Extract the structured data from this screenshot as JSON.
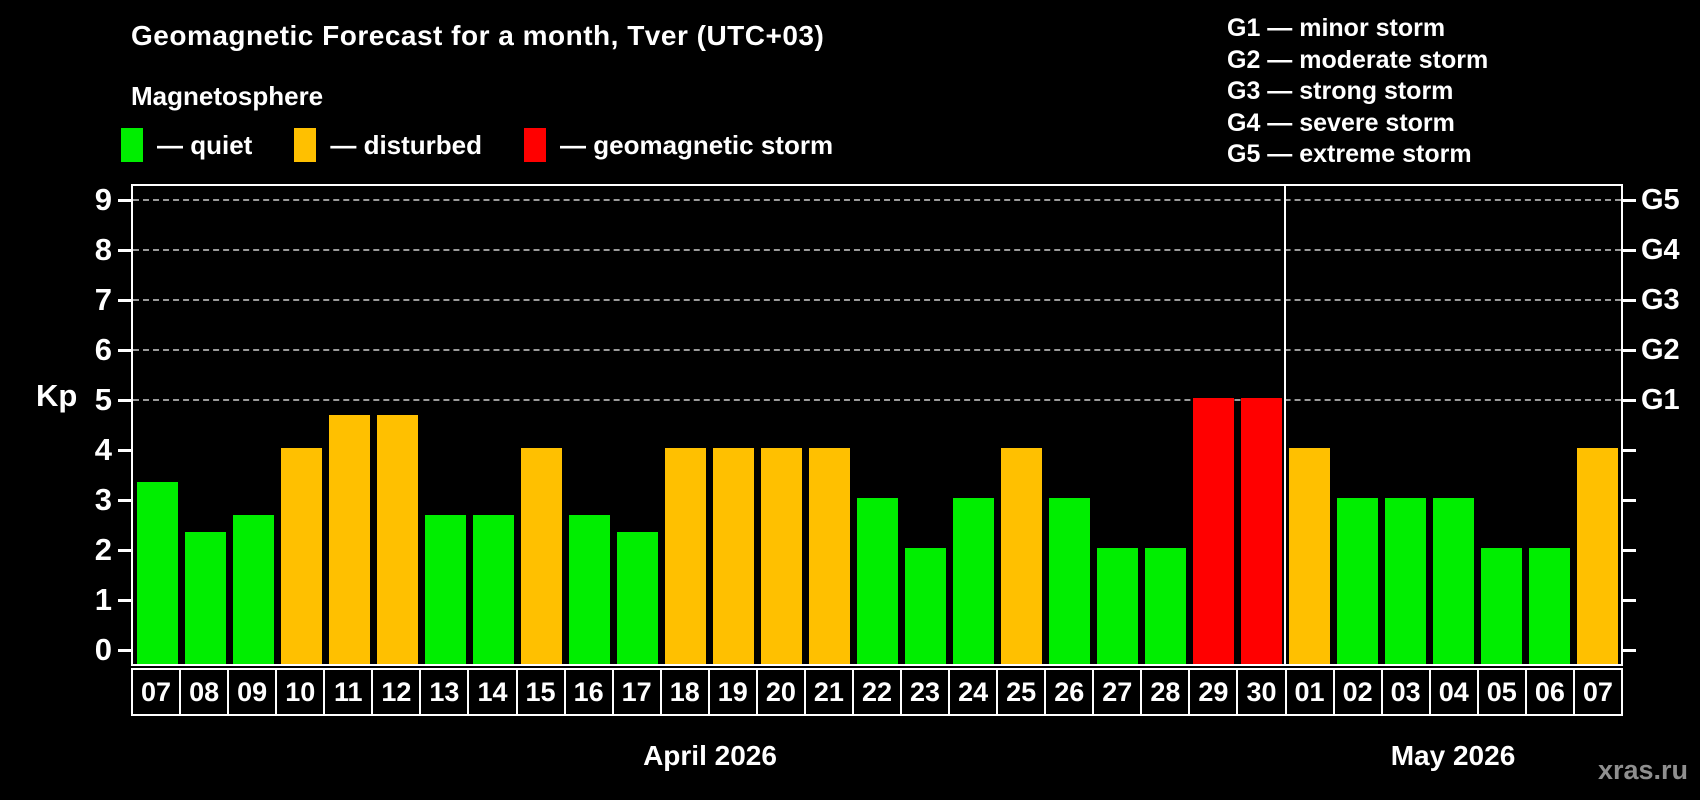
{
  "title": "Geomagnetic Forecast for a month, Tver (UTC+03)",
  "subtitle": "Magnetosphere",
  "watermark": "xras.ru",
  "legend": {
    "items": [
      {
        "key": "quiet",
        "label": "— quiet",
        "color": "#00ee00"
      },
      {
        "key": "disturbed",
        "label": "— disturbed",
        "color": "#ffc000"
      },
      {
        "key": "storm",
        "label": "— geomagnetic storm",
        "color": "#ff0000"
      }
    ]
  },
  "storm_legend": [
    "G1 — minor storm",
    "G2 — moderate storm",
    "G3 — strong storm",
    "G4 — severe storm",
    "G5 — extreme storm"
  ],
  "y_axis": {
    "label": "Kp",
    "tick_labels": [
      "0",
      "1",
      "2",
      "3",
      "4",
      "5",
      "6",
      "7",
      "8",
      "9"
    ]
  },
  "right_axis": {
    "labels": [
      {
        "value": 5,
        "label": "G1"
      },
      {
        "value": 6,
        "label": "G2"
      },
      {
        "value": 7,
        "label": "G3"
      },
      {
        "value": 8,
        "label": "G4"
      },
      {
        "value": 9,
        "label": "G5"
      }
    ]
  },
  "months": [
    {
      "label": "April 2026",
      "days": 24
    },
    {
      "label": "May 2026",
      "days": 7
    }
  ],
  "chart_data": {
    "type": "bar",
    "title": "Geomagnetic Forecast for a month, Tver (UTC+03)",
    "xlabel": "",
    "ylabel": "Kp",
    "ylim": [
      0,
      9
    ],
    "grid": "dashed horizontal lines at Kp 5-9 (G1-G5 storm levels)",
    "legend_position": "top-left",
    "categories": [
      "07",
      "08",
      "09",
      "10",
      "11",
      "12",
      "13",
      "14",
      "15",
      "16",
      "17",
      "18",
      "19",
      "20",
      "21",
      "22",
      "23",
      "24",
      "25",
      "26",
      "27",
      "28",
      "29",
      "30",
      "01",
      "02",
      "03",
      "04",
      "05",
      "06",
      "07"
    ],
    "values": [
      3.33,
      2.33,
      2.67,
      4.0,
      4.67,
      4.67,
      2.67,
      2.67,
      4.0,
      2.67,
      2.33,
      4.0,
      4.0,
      4.0,
      4.0,
      3.0,
      2.0,
      3.0,
      4.0,
      3.0,
      2.0,
      2.0,
      5.0,
      5.0,
      4.0,
      3.0,
      3.0,
      3.0,
      2.0,
      2.0,
      4.0
    ],
    "levels": [
      "quiet",
      "quiet",
      "quiet",
      "disturbed",
      "disturbed",
      "disturbed",
      "quiet",
      "quiet",
      "disturbed",
      "quiet",
      "quiet",
      "disturbed",
      "disturbed",
      "disturbed",
      "disturbed",
      "quiet",
      "quiet",
      "quiet",
      "disturbed",
      "quiet",
      "quiet",
      "quiet",
      "storm",
      "storm",
      "disturbed",
      "quiet",
      "quiet",
      "quiet",
      "quiet",
      "quiet",
      "disturbed"
    ]
  }
}
